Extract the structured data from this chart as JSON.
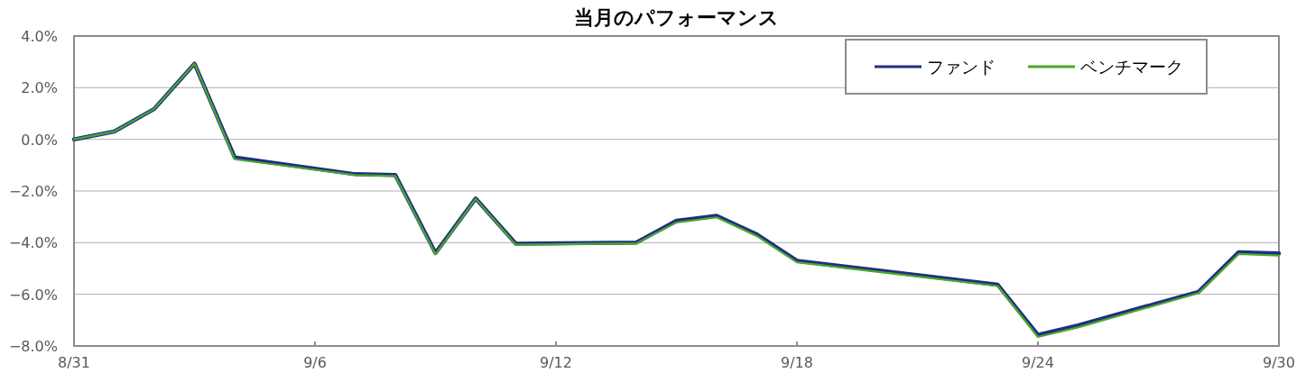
{
  "chart_data": {
    "type": "line",
    "title": "当月のパフォーマンス",
    "x": [
      "--08-31",
      "--09-01",
      "--09-02",
      "--09-03",
      "--09-04",
      "--09-07",
      "--09-08",
      "--09-09",
      "--09-10",
      "--09-11",
      "--09-14",
      "--09-15",
      "--09-16",
      "--09-17",
      "--09-18",
      "--09-23",
      "--09-24",
      "--09-25",
      "--09-28",
      "--09-29",
      "--09-30"
    ],
    "series": [
      {
        "name": "ファンド",
        "color": "#1f2f80",
        "values": [
          0.0,
          0.3,
          1.18,
          2.93,
          -0.7,
          -1.35,
          -1.38,
          -4.4,
          -2.29,
          -4.04,
          -4.0,
          -3.15,
          -2.96,
          -3.68,
          -4.7,
          -5.63,
          -7.57,
          -7.2,
          -5.9,
          -4.37,
          -4.42
        ]
      },
      {
        "name": "ベンチマーク",
        "color": "#4aa82a",
        "values": [
          0.0,
          0.3,
          1.18,
          2.93,
          -0.77,
          -1.38,
          -1.42,
          -4.45,
          -2.3,
          -4.08,
          -4.03,
          -3.22,
          -3.02,
          -3.74,
          -4.76,
          -5.68,
          -7.65,
          -7.28,
          -5.95,
          -4.44,
          -4.5
        ]
      }
    ],
    "xlim": [
      "--08-31",
      "--09-30"
    ],
    "xticks": [
      {
        "value": "--08-31",
        "label": "8/31"
      },
      {
        "value": "--09-06",
        "label": "9/6"
      },
      {
        "value": "--09-12",
        "label": "9/12"
      },
      {
        "value": "--09-18",
        "label": "9/18"
      },
      {
        "value": "--09-24",
        "label": "9/24"
      },
      {
        "value": "--09-30",
        "label": "9/30"
      }
    ],
    "ylim": [
      -8,
      4
    ],
    "yticks": [
      {
        "value": -8,
        "label": "−8.0%"
      },
      {
        "value": -6,
        "label": "−6.0%"
      },
      {
        "value": -4,
        "label": "−4.0%"
      },
      {
        "value": -2,
        "label": "−2.0%"
      },
      {
        "value": 0,
        "label": "0.0%"
      },
      {
        "value": 2,
        "label": "2.0%"
      },
      {
        "value": 4,
        "label": "4.0%"
      }
    ],
    "grid": "y",
    "legend": "top right",
    "marker": "none",
    "line_style": "solid"
  }
}
